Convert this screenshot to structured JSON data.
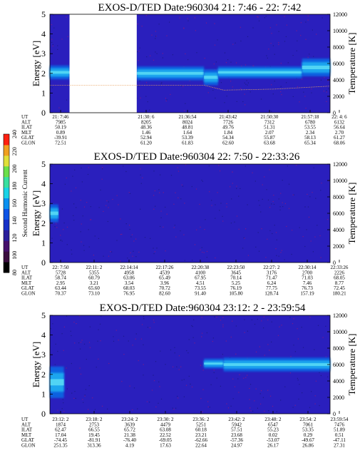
{
  "chart_data": [
    {
      "type": "heatmap",
      "title": "EXOS-D/TED   Date:960304  21: 7:46 - 22: 7:42",
      "ylabel": "Energy [eV]",
      "y2label": "Temperature [K]",
      "ylim": [
        0,
        5
      ],
      "yticks": [
        "0",
        "1",
        "2",
        "3",
        "4",
        "5"
      ],
      "y2lim": [
        0,
        12000
      ],
      "y2ticks": [
        "0",
        "2000",
        "4000",
        "6000",
        "8000",
        "10000",
        "12000"
      ],
      "data_gap": [
        0.07,
        0.31
      ],
      "bands": [
        {
          "x_from": 0.0,
          "x_to": 0.07,
          "y_center": 2.05,
          "y_half": 0.35
        },
        {
          "x_from": 0.31,
          "x_to": 0.55,
          "y_center": 2.0,
          "y_half": 0.35
        },
        {
          "x_from": 0.55,
          "x_to": 0.6,
          "y_center": 1.8,
          "y_half": 0.4
        },
        {
          "x_from": 0.6,
          "x_to": 0.9,
          "y_center": 2.05,
          "y_half": 0.3
        },
        {
          "x_from": 0.9,
          "x_to": 1.0,
          "y_center": 2.3,
          "y_half": 0.45
        }
      ],
      "temperature_trace": [
        [
          0.0,
          1.4
        ],
        [
          0.07,
          1.4
        ],
        [
          0.31,
          1.4
        ],
        [
          0.55,
          1.4
        ],
        [
          0.62,
          1.15
        ],
        [
          0.8,
          1.2
        ],
        [
          1.0,
          1.35
        ]
      ],
      "orbit_table": {
        "labels": [
          "UT",
          "ALT",
          "ILAT",
          "MLT",
          "GLAT",
          "GLON"
        ],
        "columns": [
          [
            "21: 7:46",
            "7985",
            "50.19",
            "0.89",
            "-39.91",
            "72.51"
          ],
          [
            "21:30: 6",
            "8205",
            "48.36",
            "1.46",
            "52.94",
            "61.20"
          ],
          [
            "21:36:54",
            "8024",
            "48.81",
            "1.64",
            "53.39",
            "61.83"
          ],
          [
            "21:43:42",
            "7726",
            "49.76",
            "1.84",
            "54.34",
            "62.60"
          ],
          [
            "21:50:30",
            "7312",
            "51.31",
            "2.07",
            "55.87",
            "63.68"
          ],
          [
            "21:57:18",
            "6780",
            "53.55",
            "2.34",
            "58.13",
            "65.34"
          ],
          [
            "22: 4: 6",
            "6132",
            "56.64",
            "2.70",
            "61.27",
            "68.06"
          ]
        ]
      }
    },
    {
      "type": "heatmap",
      "title": "EXOS-D/TED   Date:960304  22: 7:50 - 22:33:26",
      "ylabel": "Energy [eV]",
      "y2label": "Temperature [K]",
      "ylim": [
        0,
        5
      ],
      "yticks": [
        "0",
        "1",
        "2",
        "3",
        "4",
        "5"
      ],
      "y2lim": [
        0,
        12000
      ],
      "y2ticks": [
        "0",
        "2000",
        "4000",
        "6000",
        "8000",
        "10000",
        "12000"
      ],
      "bands": [
        {
          "x_from": 0.0,
          "x_to": 0.03,
          "y_center": 2.5,
          "y_half": 0.45
        }
      ],
      "orbit_table": {
        "labels": [
          "UT",
          "ALT",
          "ILAT",
          "MLT",
          "GLAT",
          "GLON"
        ],
        "columns": [
          [
            "22: 7:50",
            "5728",
            "58.74",
            "2.95",
            "63.44",
            "70.37"
          ],
          [
            "22:11: 2",
            "5355",
            "60.79",
            "3.21",
            "65.60",
            "73.10"
          ],
          [
            "22:14:14",
            "4958",
            "63.06",
            "3.54",
            "68.03",
            "76.95"
          ],
          [
            "22:17:26",
            "4539",
            "65.49",
            "3.96",
            "70.72",
            "82.60"
          ],
          [
            "22:20:38",
            "4100",
            "67.95",
            "4.51",
            "73.55",
            "91.40"
          ],
          [
            "22:23:50",
            "3645",
            "70.14",
            "5.25",
            "76.19",
            "105.80"
          ],
          [
            "22:27: 2",
            "3176",
            "71.47",
            "6.24",
            "77.75",
            "128.74"
          ],
          [
            "22:30:14",
            "2700",
            "71.03",
            "7.46",
            "76.73",
            "157.19"
          ],
          [
            "22:33:26",
            "2226",
            "68.05",
            "8.77",
            "72.45",
            "180.21"
          ]
        ]
      }
    },
    {
      "type": "heatmap",
      "title": "EXOS-D/TED   Date:960304  23:12: 2 - 23:59:54",
      "ylabel": "Energy [eV]",
      "y2label": "Temperature [K]",
      "ylim": [
        0,
        5
      ],
      "yticks": [
        "0",
        "1",
        "2",
        "3",
        "4",
        "5"
      ],
      "y2lim": [
        0,
        12000
      ],
      "y2ticks": [
        "0",
        "2000",
        "4000",
        "6000",
        "8000",
        "10000",
        "12000"
      ],
      "bands": [
        {
          "x_from": 0.0,
          "x_to": 0.05,
          "y_center": 1.6,
          "y_half": 0.8
        },
        {
          "x_from": 0.55,
          "x_to": 0.62,
          "y_center": 2.55,
          "y_half": 0.25
        },
        {
          "x_from": 0.62,
          "x_to": 1.0,
          "y_center": 2.5,
          "y_half": 0.35
        }
      ],
      "orbit_table": {
        "labels": [
          "UT",
          "ALT",
          "ILAT",
          "MLT",
          "GLAT",
          "GLON"
        ],
        "columns": [
          [
            "23:12: 2",
            "1874",
            "62.47",
            "17.04",
            "-74.45",
            "251.35"
          ],
          [
            "23:18: 2",
            "2753",
            "66.55",
            "19.45",
            "-81.91",
            "313.36"
          ],
          [
            "23:24: 2",
            "3639",
            "65.72",
            "21.38",
            "-76.40",
            "4.19"
          ],
          [
            "23:30: 2",
            "4479",
            "63.08",
            "22.52",
            "-69.05",
            "17.63"
          ],
          [
            "23:36: 2",
            "5251",
            "60.18",
            "23.21",
            "-62.66",
            "22.64"
          ],
          [
            "23:42: 2",
            "5942",
            "57.51",
            "23.68",
            "-57.36",
            "24.97"
          ],
          [
            "23:48: 2",
            "6547",
            "55.23",
            "0.02",
            "-53.07",
            "26.17"
          ],
          [
            "23:54: 2",
            "7061",
            "53.35",
            "0.29",
            "-49.67",
            "26.86"
          ],
          [
            "23:59:54",
            "7476",
            "51.89",
            "0.51",
            "-47.11",
            "27.31"
          ]
        ]
      }
    }
  ],
  "colorbar": {
    "label": "Second Harmonic Current",
    "ticks": [
      "80",
      "100",
      "120",
      "140",
      "160",
      "180",
      "200",
      "220",
      "240"
    ],
    "colors": [
      "#000000",
      "#3a0d3f",
      "#45106b",
      "#2a1f9c",
      "#1630c8",
      "#0d54e6",
      "#0a90f0",
      "#19d3e6",
      "#39e0a0",
      "#6be04a",
      "#e0e03a",
      "#f0a020",
      "#ff2010"
    ]
  }
}
